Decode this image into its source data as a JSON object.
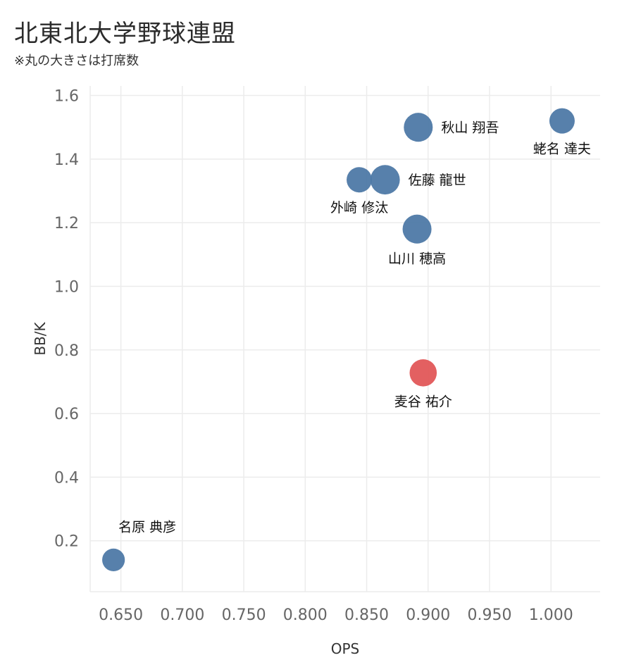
{
  "header": {
    "title": "北東北大学野球連盟",
    "subtitle": "※丸の大きさは打席数"
  },
  "chart_data": {
    "type": "scatter",
    "title": "北東北大学野球連盟",
    "subtitle": "※丸の大きさは打席数",
    "xlabel": "OPS",
    "ylabel": "BB/K",
    "xlim": [
      0.625,
      1.04
    ],
    "ylim": [
      0.04,
      1.63
    ],
    "xticks": [
      0.65,
      0.7,
      0.75,
      0.8,
      0.85,
      0.9,
      0.95,
      1.0
    ],
    "xtick_labels": [
      "0.650",
      "0.700",
      "0.750",
      "0.800",
      "0.850",
      "0.900",
      "0.950",
      "1.000"
    ],
    "yticks": [
      0.2,
      0.4,
      0.6,
      0.8,
      1.0,
      1.2,
      1.4,
      1.6
    ],
    "ytick_labels": [
      "0.2",
      "0.4",
      "0.6",
      "0.8",
      "1.0",
      "1.2",
      "1.4",
      "1.6"
    ],
    "grid": true,
    "colors": {
      "default": "#4E79A7",
      "highlight": "#E15759"
    },
    "points": [
      {
        "name": "秋山 翔吾",
        "x": 0.892,
        "y": 1.5,
        "size": 1.3,
        "highlight": false,
        "label_pos": "right"
      },
      {
        "name": "蛯名 達夫",
        "x": 1.009,
        "y": 1.52,
        "size": 1.0,
        "highlight": false,
        "label_pos": "below"
      },
      {
        "name": "佐藤 龍世",
        "x": 0.865,
        "y": 1.335,
        "size": 1.35,
        "highlight": false,
        "label_pos": "right"
      },
      {
        "name": "外崎 修汰",
        "x": 0.844,
        "y": 1.335,
        "size": 1.0,
        "highlight": false,
        "label_pos": "below"
      },
      {
        "name": "山川 穂高",
        "x": 0.891,
        "y": 1.18,
        "size": 1.3,
        "highlight": false,
        "label_pos": "below"
      },
      {
        "name": "麦谷 祐介",
        "x": 0.896,
        "y": 0.728,
        "size": 1.15,
        "highlight": true,
        "label_pos": "below"
      },
      {
        "name": "名原 典彦",
        "x": 0.644,
        "y": 0.14,
        "size": 0.8,
        "highlight": false,
        "label_pos": "above"
      }
    ]
  }
}
